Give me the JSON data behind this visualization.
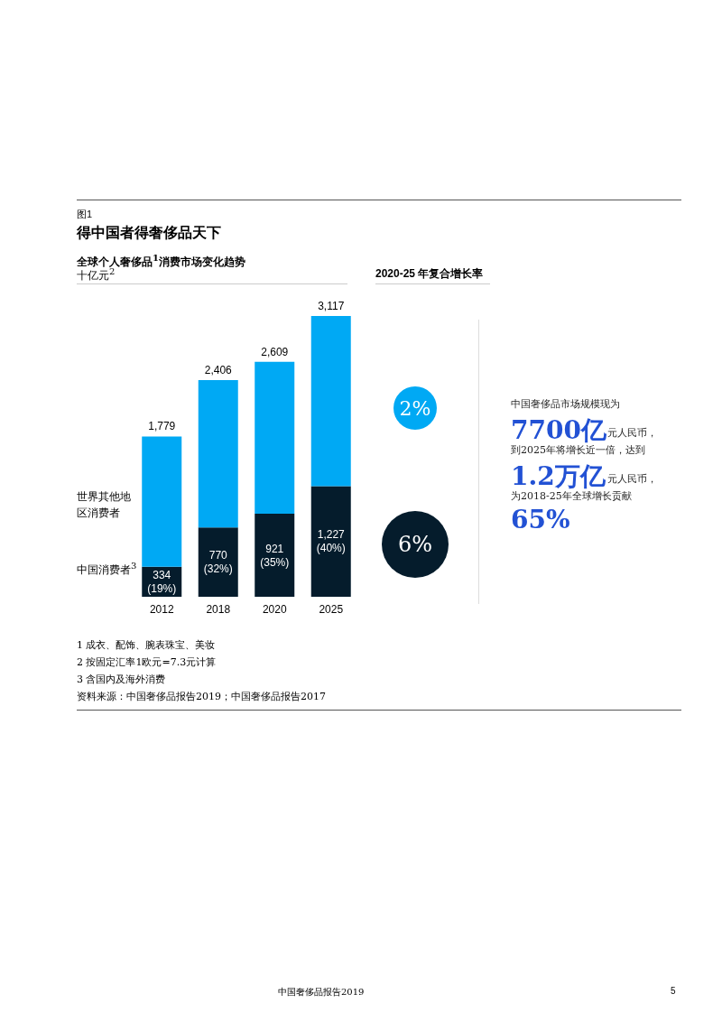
{
  "chart_data": {
    "type": "bar",
    "stacked": true,
    "title": "得中国者得奢侈品天下",
    "subtitle": "全球个人奢侈品$^{1}$消费市场变化趋势",
    "ylabel": "十亿元$^{2}$",
    "categories": [
      "2012",
      "2018",
      "2020",
      "2025"
    ],
    "series": [
      {
        "name": "中国消费者$^{3}$",
        "color": "#051c2c",
        "values": [
          334,
          770,
          921,
          1227
        ],
        "value_labels": [
          "334\n(19%)",
          "770\n(32%)",
          "921\n(35%)",
          "1,227\n(40%)"
        ]
      },
      {
        "name": "世界其他地区消费者",
        "color": "#00a9f4",
        "values": [
          1445,
          1636,
          1688,
          1890
        ]
      }
    ],
    "totals": [
      "1,779",
      "2,406",
      "2,609",
      "3,117"
    ],
    "annotations": [
      "图1",
      "2020-25 年复合增长率",
      "2%",
      "6%",
      "中国奢侈品市场规模现为",
      "7700亿",
      "元人民币，",
      "到2025年将增长近一倍，达到",
      "1.2万亿",
      "元人民币，",
      "为2018-25年全球增长贡献",
      "65%",
      "1 成衣、配饰、腕表珠宝、美妆",
      "2 按固定汇率1欧元=7.3元计算",
      "3 含国内及海外消费",
      "资料来源：中国奢侈品报告2019；中国奢侈品报告2017",
      "中国奢侈品报告2019",
      "5"
    ]
  }
}
